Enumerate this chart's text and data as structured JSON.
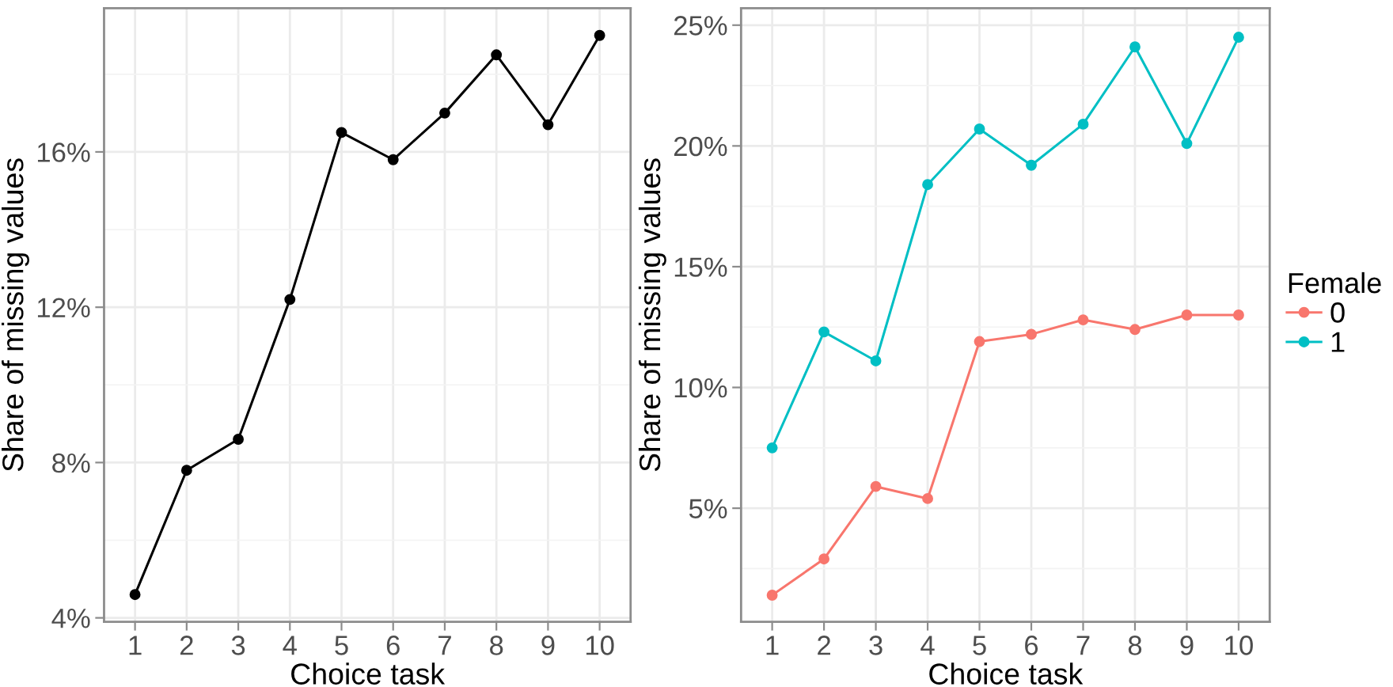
{
  "chart_data": [
    {
      "type": "line",
      "xlabel": "Choice task",
      "ylabel": "Share of missing values",
      "categories": [
        "1",
        "2",
        "3",
        "4",
        "5",
        "6",
        "7",
        "8",
        "9",
        "10"
      ],
      "series": [
        {
          "color": "#000000",
          "values": [
            4.6,
            7.8,
            8.6,
            12.2,
            16.5,
            15.8,
            17.0,
            18.5,
            16.7,
            19.0
          ]
        }
      ],
      "ylim": [
        3.9,
        19.7
      ],
      "yticks": [
        {
          "value": 4,
          "label": "4%"
        },
        {
          "value": 8,
          "label": "8%"
        },
        {
          "value": 12,
          "label": "12%"
        },
        {
          "value": 16,
          "label": "16%"
        }
      ],
      "grid": true,
      "marker": "circle",
      "line_style": "solid"
    },
    {
      "type": "line",
      "xlabel": "Choice task",
      "ylabel": "Share of missing values",
      "legend_title": "Female",
      "legend": "right",
      "categories": [
        "1",
        "2",
        "3",
        "4",
        "5",
        "6",
        "7",
        "8",
        "9",
        "10"
      ],
      "series": [
        {
          "name": "0",
          "color": "#f8766d",
          "values": [
            1.4,
            2.9,
            5.9,
            5.4,
            11.9,
            12.2,
            12.8,
            12.4,
            13.0,
            13.0
          ]
        },
        {
          "name": "1",
          "color": "#00bfc4",
          "values": [
            7.5,
            12.3,
            11.1,
            18.4,
            20.7,
            19.2,
            20.9,
            24.1,
            20.1,
            24.5
          ]
        }
      ],
      "ylim": [
        0.3,
        25.7
      ],
      "yticks": [
        {
          "value": 5,
          "label": "5%"
        },
        {
          "value": 10,
          "label": "10%"
        },
        {
          "value": 15,
          "label": "15%"
        },
        {
          "value": 20,
          "label": "20%"
        },
        {
          "value": 25,
          "label": "25%"
        }
      ],
      "grid": true,
      "marker": "circle",
      "line_style": "solid"
    }
  ]
}
